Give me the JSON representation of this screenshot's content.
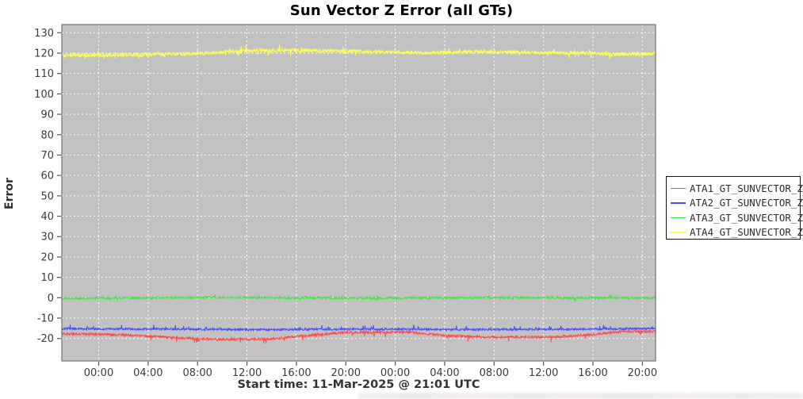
{
  "title": "Sun Vector Z Error (all GTs)",
  "axes": {
    "y_label": "Error",
    "x_label": "Start time: 11-Mar-2025 @ 21:01 UTC"
  },
  "colors": {
    "plot_background": "#c2c2c2",
    "grid": "#ffffff",
    "plot_border": "#7a7a7a",
    "tick_label": "#3c3c3c",
    "series_red": "#ff4a4a",
    "series_blue": "#4b4bff",
    "series_green": "#3fe53f",
    "series_yellow": "#ffff4d"
  },
  "legend": {
    "items": [
      {
        "label": "ATA1_GT_SUNVECTOR_Z",
        "color": "#ff4a4a"
      },
      {
        "label": "ATA2_GT_SUNVECTOR_Z",
        "color": "#4b4bff"
      },
      {
        "label": "ATA3_GT_SUNVECTOR_Z",
        "color": "#3fe53f"
      },
      {
        "label": "ATA4_GT_SUNVECTOR_Z",
        "color": "#ffff4d"
      }
    ]
  },
  "chart_data": {
    "type": "line",
    "title": "Sun Vector Z Error (all GTs)",
    "xlabel": "Start time: 11-Mar-2025 @ 21:01 UTC",
    "ylabel": "Error",
    "ylim": [
      -31,
      134
    ],
    "y_ticks": [
      -20,
      -10,
      0,
      10,
      20,
      30,
      40,
      50,
      60,
      70,
      80,
      90,
      100,
      110,
      120,
      130
    ],
    "x_tick_labels": [
      "00:00",
      "04:00",
      "08:00",
      "12:00",
      "16:00",
      "20:00",
      "00:00",
      "04:00",
      "08:00",
      "12:00",
      "16:00",
      "20:00"
    ],
    "total_hours": 48.05,
    "first_tick_hour": 2.983,
    "tick_interval_hours": 4,
    "grid": "white-dashed",
    "legend_position": "right-outside",
    "series": [
      {
        "name": "ATA1_GT_SUNVECTOR_Z",
        "color": "#ff4a4a",
        "mean": -18.6,
        "baseline": [
          [
            0,
            -17.6
          ],
          [
            5,
            -18.2
          ],
          [
            9,
            -19.6
          ],
          [
            13,
            -20.4
          ],
          [
            17,
            -20.2
          ],
          [
            20,
            -18.4
          ],
          [
            23,
            -17.0
          ],
          [
            28,
            -16.9
          ],
          [
            31,
            -18.6
          ],
          [
            35,
            -19.4
          ],
          [
            40,
            -19.2
          ],
          [
            43,
            -18.0
          ],
          [
            45.5,
            -16.4
          ],
          [
            48.05,
            -16.6
          ]
        ],
        "noise": 0.6,
        "spike_amp": 1.6,
        "spike_prob": 0.05,
        "spike_bias": -0.3
      },
      {
        "name": "ATA2_GT_SUNVECTOR_Z",
        "color": "#4b4bff",
        "mean": -15.4,
        "baseline": [
          [
            0,
            -15.2
          ],
          [
            8,
            -15.4
          ],
          [
            16,
            -15.7
          ],
          [
            24,
            -15.4
          ],
          [
            32,
            -15.6
          ],
          [
            40,
            -15.5
          ],
          [
            48.05,
            -15.1
          ]
        ],
        "noise": 0.5,
        "spike_amp": 1.3,
        "spike_prob": 0.06,
        "spike_bias": 0.3
      },
      {
        "name": "ATA3_GT_SUNVECTOR_Z",
        "color": "#3fe53f",
        "mean": -0.1,
        "baseline": [
          [
            0,
            -0.3
          ],
          [
            12,
            0.1
          ],
          [
            24,
            -0.2
          ],
          [
            36,
            0.0
          ],
          [
            48.05,
            -0.1
          ]
        ],
        "noise": 0.5,
        "spike_amp": 1.4,
        "spike_prob": 0.05,
        "spike_bias": 0
      },
      {
        "name": "ATA4_GT_SUNVECTOR_Z",
        "color": "#ffff4d",
        "mean": 120.3,
        "baseline": [
          [
            0,
            118.8
          ],
          [
            6,
            119.3
          ],
          [
            10,
            119.6
          ],
          [
            14,
            120.9
          ],
          [
            18,
            121.4
          ],
          [
            22,
            121.0
          ],
          [
            26,
            120.6
          ],
          [
            30,
            120.2
          ],
          [
            34,
            120.7
          ],
          [
            38,
            120.3
          ],
          [
            42,
            120.1
          ],
          [
            45,
            119.3
          ],
          [
            48.05,
            119.8
          ]
        ],
        "noise": 0.9,
        "spike_amp": 2.2,
        "spike_prob": 0.05,
        "spike_bias": 0
      }
    ]
  }
}
